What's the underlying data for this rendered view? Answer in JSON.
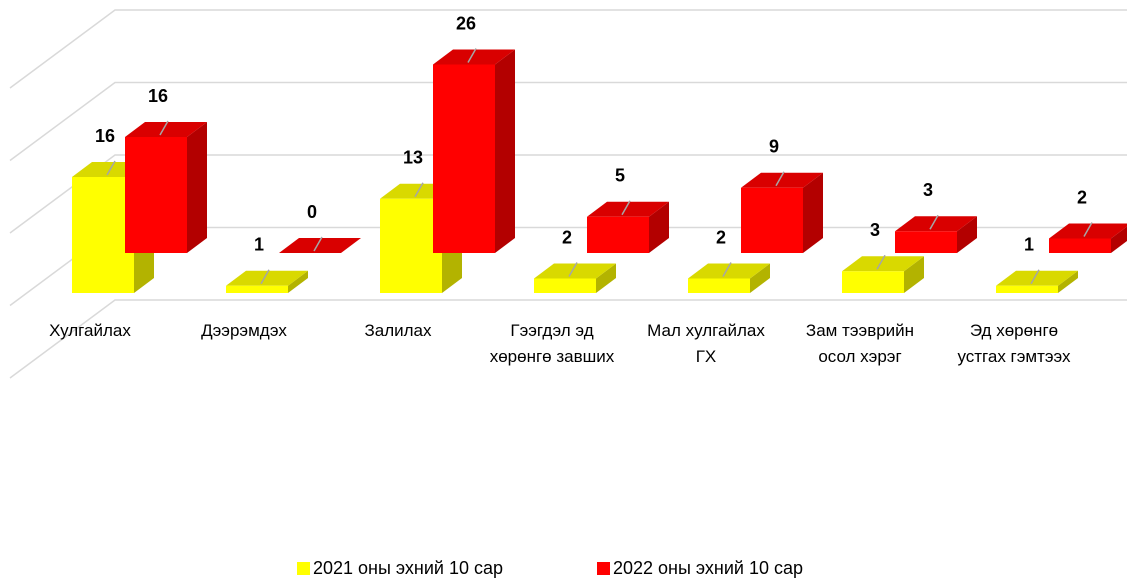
{
  "chart_data": {
    "type": "bar3d",
    "categories": [
      "Хулгайлах",
      "Дээрэмдэх",
      "Залилах",
      "Гээгдэл эд хөрөнгө завших",
      "Мал хулгайлах ГХ",
      "Зам тээврийн осол хэрэг",
      "Эд хөрөнгө устгах гэмтээх"
    ],
    "series": [
      {
        "name": "2021 оны эхний 10 сар",
        "color": "#ffff00",
        "values": [
          16,
          1,
          13,
          2,
          2,
          3,
          1
        ]
      },
      {
        "name": "2022 оны эхний 10 сар",
        "color": "#ff0000",
        "values": [
          16,
          0,
          26,
          5,
          9,
          3,
          2
        ]
      }
    ],
    "ylim": [
      0,
      40
    ],
    "yticks": [
      0,
      10,
      20,
      30,
      40
    ],
    "grid": true,
    "legend": "bottom"
  }
}
